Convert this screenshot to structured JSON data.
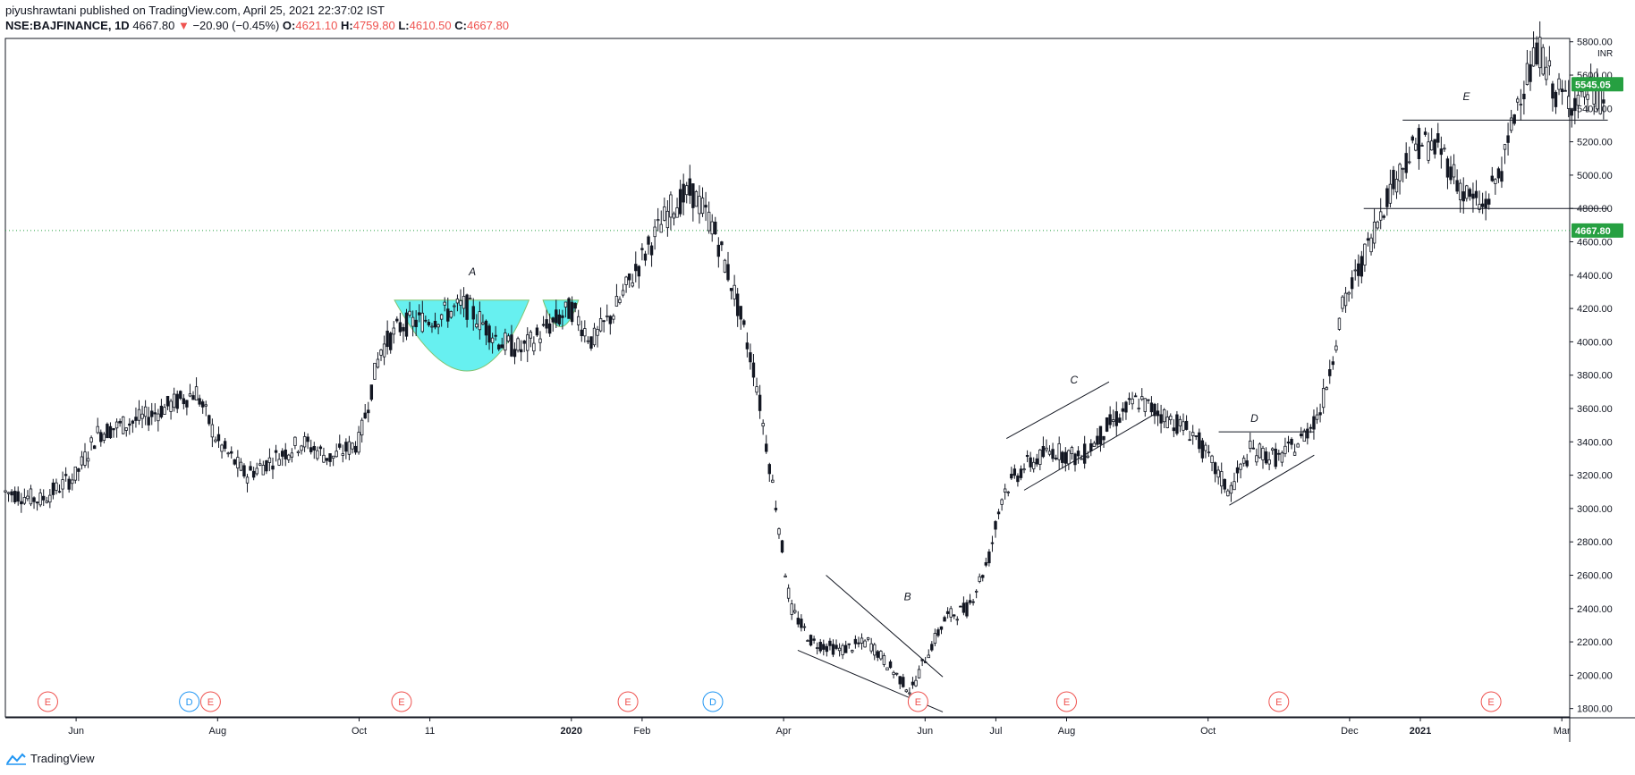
{
  "header": {
    "publisher_line": "piyushrawtani published on TradingView.com, April 25, 2021 22:37:02 IST",
    "symbol": "NSE:BAJFINANCE, 1D",
    "last": "4667.80",
    "change_arrow": "▼",
    "change": "−20.90 (−0.45%)",
    "o_label": "O:",
    "o_value": "4621.10",
    "h_label": "H:",
    "h_value": "4759.80",
    "l_label": "L:",
    "l_value": "4610.50",
    "c_label": "C:",
    "c_value": "4667.80"
  },
  "footer": {
    "brand": "TradingView"
  },
  "colors": {
    "candle": "#131722",
    "cup_fill": "#5ff0f0",
    "last_price_badge": "#26a041",
    "price_line": "#26a041",
    "earnings": "#ef5350",
    "dividend": "#2196f3"
  },
  "chart_data": {
    "type": "candlestick",
    "symbol": "NSE:BAJFINANCE",
    "interval": "1D",
    "currency": "INR",
    "ylim": [
      1750,
      5820
    ],
    "y_ticks": [
      1800,
      2000,
      2200,
      2400,
      2600,
      2800,
      3000,
      3200,
      3400,
      3600,
      3800,
      4000,
      4200,
      4400,
      4600,
      4800,
      5000,
      5200,
      5400,
      5600,
      5800
    ],
    "y_tick_labels": [
      "1800.00",
      "2000.00",
      "2200.00",
      "2400.00",
      "2600.00",
      "2800.00",
      "3000.00",
      "3200.00",
      "3400.00",
      "3600.00",
      "3800.00",
      "4000.00",
      "4200.00",
      "4400.00",
      "4600.00",
      "4800.00",
      "5000.00",
      "5200.00",
      "5400.00",
      "5600.00",
      "5800.00"
    ],
    "x_labels": [
      {
        "label": "Jun",
        "month": 1
      },
      {
        "label": "Aug",
        "month": 3
      },
      {
        "label": "Oct",
        "month": 5
      },
      {
        "label": "11",
        "month": 6
      },
      {
        "label": "2020",
        "month": 8,
        "bold": true
      },
      {
        "label": "Feb",
        "month": 9
      },
      {
        "label": "Apr",
        "month": 11
      },
      {
        "label": "Jun",
        "month": 13
      },
      {
        "label": "Jul",
        "month": 14
      },
      {
        "label": "Aug",
        "month": 15
      },
      {
        "label": "Oct",
        "month": 17
      },
      {
        "label": "Dec",
        "month": 19
      },
      {
        "label": "2021",
        "month": 20,
        "bold": true
      },
      {
        "label": "Mar",
        "month": 22
      }
    ],
    "price_path": [
      [
        0,
        3100
      ],
      [
        0.5,
        3050
      ],
      [
        1,
        3200
      ],
      [
        1.3,
        3450
      ],
      [
        2,
        3550
      ],
      [
        2.7,
        3700
      ],
      [
        3,
        3400
      ],
      [
        3.4,
        3200
      ],
      [
        3.8,
        3300
      ],
      [
        4.2,
        3400
      ],
      [
        4.6,
        3300
      ],
      [
        5,
        3400
      ],
      [
        5.3,
        3950
      ],
      [
        5.6,
        4100
      ],
      [
        6.1,
        4150
      ],
      [
        6.5,
        4220
      ],
      [
        7.0,
        4000
      ],
      [
        7.3,
        3950
      ],
      [
        7.7,
        4100
      ],
      [
        8.0,
        4200
      ],
      [
        8.3,
        4000
      ],
      [
        8.6,
        4180
      ],
      [
        9.0,
        4500
      ],
      [
        9.4,
        4800
      ],
      [
        9.7,
        4900
      ],
      [
        10.0,
        4700
      ],
      [
        10.3,
        4300
      ],
      [
        10.6,
        3800
      ],
      [
        10.9,
        3000
      ],
      [
        11.1,
        2400
      ],
      [
        11.4,
        2200
      ],
      [
        11.8,
        2150
      ],
      [
        12.2,
        2200
      ],
      [
        12.5,
        2050
      ],
      [
        12.8,
        1900
      ],
      [
        13.0,
        2100
      ],
      [
        13.3,
        2350
      ],
      [
        13.6,
        2400
      ],
      [
        13.9,
        2700
      ],
      [
        14.1,
        3100
      ],
      [
        14.4,
        3250
      ],
      [
        14.8,
        3350
      ],
      [
        15.2,
        3300
      ],
      [
        15.6,
        3500
      ],
      [
        16.0,
        3650
      ],
      [
        16.4,
        3550
      ],
      [
        16.8,
        3450
      ],
      [
        17.0,
        3300
      ],
      [
        17.3,
        3100
      ],
      [
        17.6,
        3350
      ],
      [
        18.0,
        3300
      ],
      [
        18.3,
        3400
      ],
      [
        18.6,
        3600
      ],
      [
        18.9,
        4200
      ],
      [
        19.2,
        4500
      ],
      [
        19.5,
        4850
      ],
      [
        19.8,
        5100
      ],
      [
        20.0,
        5200
      ],
      [
        20.3,
        5150
      ],
      [
        20.6,
        4900
      ],
      [
        20.9,
        4800
      ],
      [
        21.2,
        5100
      ],
      [
        21.4,
        5500
      ],
      [
        21.7,
        5750
      ],
      [
        21.9,
        5500
      ],
      [
        22.1,
        5450
      ],
      [
        22.4,
        5500
      ],
      [
        22.6,
        5450
      ]
    ],
    "last_price": 4667.8,
    "last_price_label": "4667.80",
    "close_price_label": "5545.05",
    "close_price": 5545.05,
    "pattern_labels": [
      "A",
      "B",
      "C",
      "D",
      "E"
    ],
    "events": [
      {
        "type": "E",
        "month": 0.6
      },
      {
        "type": "D",
        "month": 2.6
      },
      {
        "type": "E",
        "month": 2.9
      },
      {
        "type": "E",
        "month": 5.6
      },
      {
        "type": "E",
        "month": 8.8
      },
      {
        "type": "D",
        "month": 10.0
      },
      {
        "type": "E",
        "month": 12.9
      },
      {
        "type": "E",
        "month": 15.0
      },
      {
        "type": "E",
        "month": 18.0
      },
      {
        "type": "E",
        "month": 21.0
      }
    ]
  }
}
